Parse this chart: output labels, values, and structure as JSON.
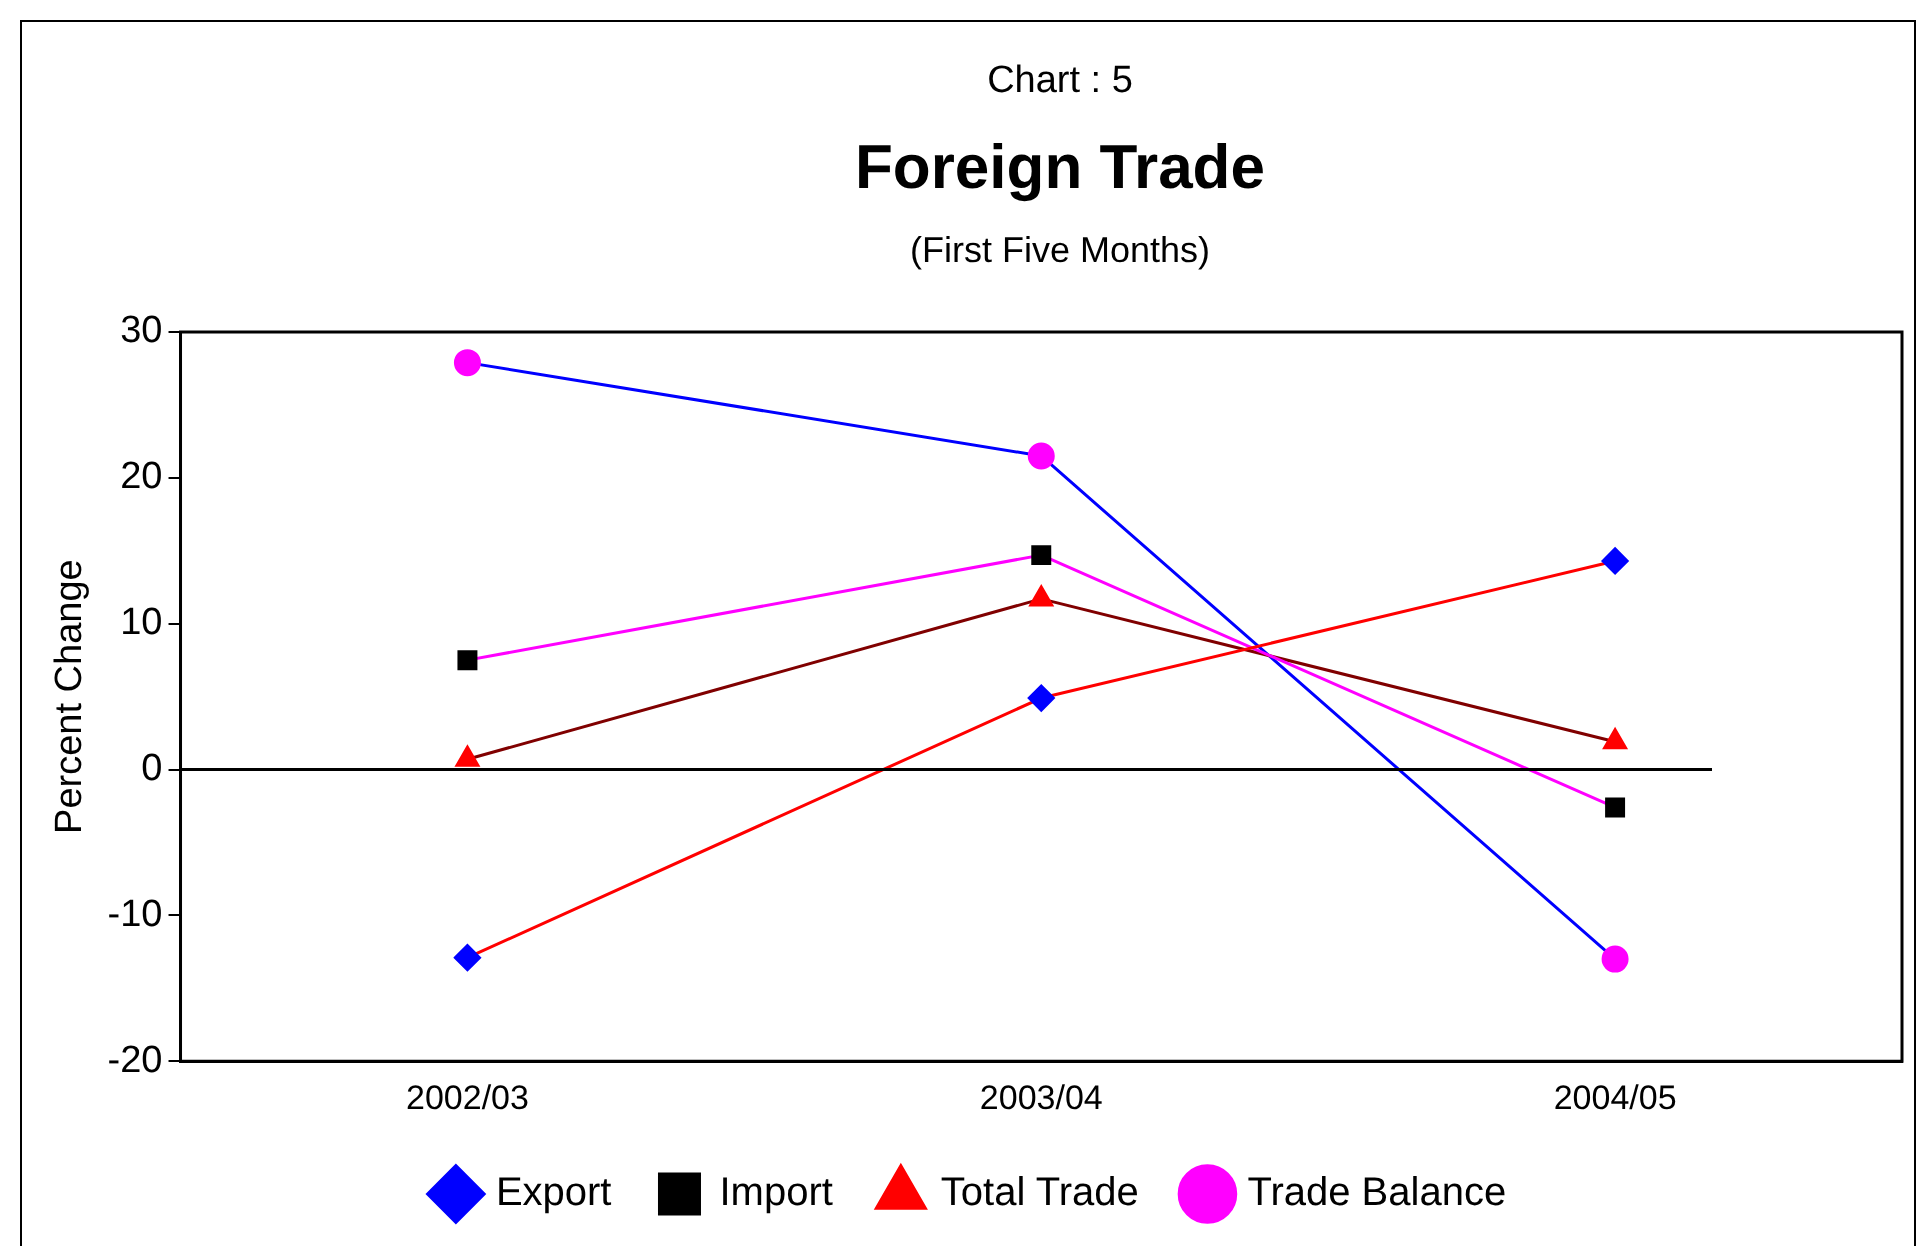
{
  "chart_data": {
    "type": "line",
    "title": "Foreign Trade",
    "subtitle": "(First Five Months)",
    "ylabel": "Percent Change",
    "annotations": [
      "Chart : 5"
    ],
    "categories": [
      "2002/03",
      "2003/04",
      "2004/05"
    ],
    "series": [
      {
        "name": "Export",
        "color": "#ff0000",
        "colors": [
          "#0000ff",
          "#0000ff",
          "#0000ff"
        ],
        "marker": "diamond",
        "values": [
          -12.9,
          4.9,
          14.3
        ]
      },
      {
        "name": "Import",
        "color": "#ff00ff",
        "colors": [
          "#000000",
          "#000000",
          "#000000"
        ],
        "marker": "square",
        "values": [
          7.5,
          14.7,
          -2.6
        ]
      },
      {
        "name": "Total Trade",
        "color": "#800000",
        "colors": [
          "#ff0000",
          "#ff0000",
          "#ff0000"
        ],
        "marker": "triangle",
        "values": [
          0.7,
          11.7,
          1.9
        ]
      },
      {
        "name": "Trade Balance",
        "color": "#0000ff",
        "colors": [
          "#ff00ff",
          "#ff00ff",
          "#ff00ff"
        ],
        "marker": "circle",
        "values": [
          27.9,
          21.5,
          -13
        ]
      }
    ],
    "ylim": [
      -20,
      30
    ],
    "yticks": [
      -20,
      -10,
      0,
      10,
      20,
      30
    ],
    "ref_lines": [
      {
        "axis": "y",
        "value": 0,
        "color": "#000000"
      }
    ],
    "grid": false,
    "legend": "bottom",
    "line_style": "solid"
  }
}
